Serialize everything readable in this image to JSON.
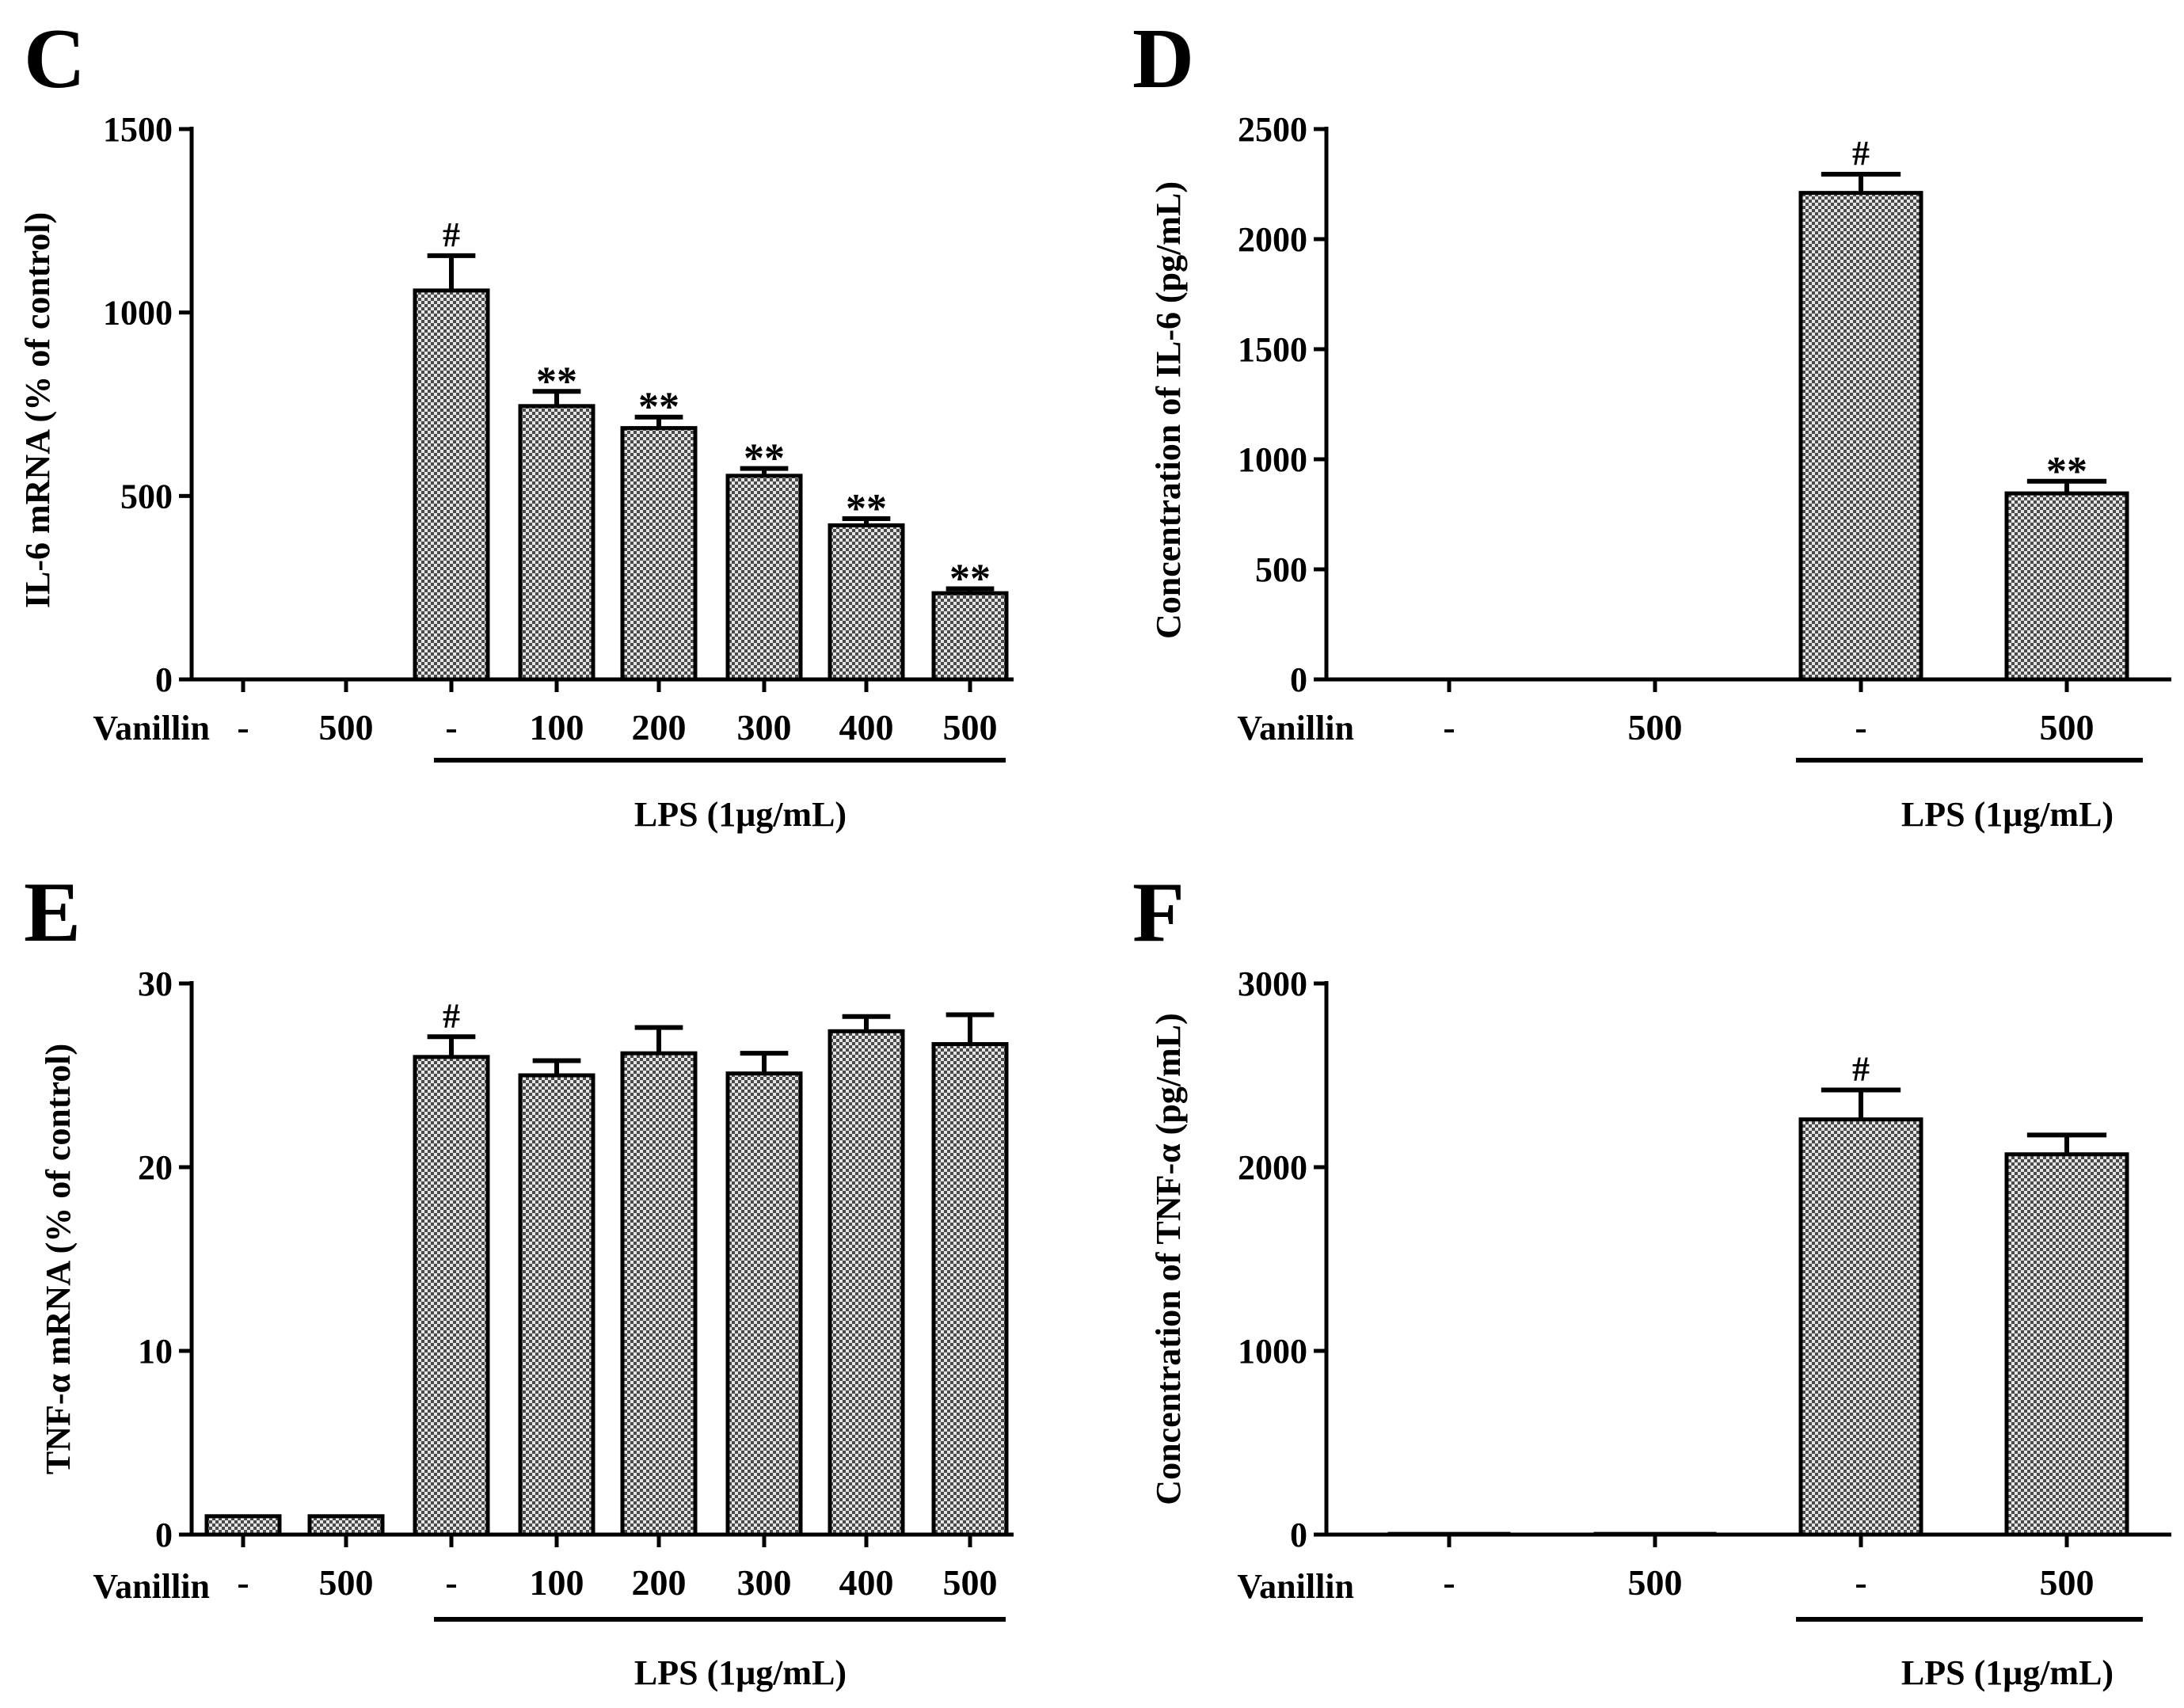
{
  "chart_data": [
    {
      "id": "C",
      "panel_label": "C",
      "type": "bar",
      "ylabel": "IL-6 mRNA (% of control)",
      "ylim": [
        0,
        1500
      ],
      "yticks": [
        0,
        500,
        1000,
        1500
      ],
      "row_label": "Vanillin",
      "categories": [
        "-",
        "500",
        "-",
        "100",
        "200",
        "300",
        "400",
        "500"
      ],
      "values": [
        0,
        0,
        1060,
        745,
        685,
        555,
        420,
        235
      ],
      "errors": [
        0,
        0,
        95,
        40,
        30,
        20,
        18,
        12
      ],
      "annotations": [
        "",
        "",
        "#",
        "**",
        "**",
        "**",
        "**",
        "**"
      ],
      "group_label": "LPS (1μg/mL)",
      "group_range": [
        2,
        7
      ]
    },
    {
      "id": "D",
      "panel_label": "D",
      "type": "bar",
      "ylabel": "Concentration of IL-6 (pg/mL)",
      "ylim": [
        0,
        2500
      ],
      "yticks": [
        0,
        500,
        1000,
        1500,
        2000,
        2500
      ],
      "row_label": "Vanillin",
      "categories": [
        "-",
        "500",
        "-",
        "500"
      ],
      "values": [
        0,
        0,
        2210,
        845
      ],
      "errors": [
        0,
        0,
        85,
        55
      ],
      "annotations": [
        "",
        "",
        "#",
        "**"
      ],
      "group_label": "LPS (1μg/mL)",
      "group_range": [
        2,
        3
      ]
    },
    {
      "id": "E",
      "panel_label": "E",
      "type": "bar",
      "ylabel": "TNF-α mRNA (% of control)",
      "ylim": [
        0,
        30
      ],
      "yticks": [
        0,
        10,
        20,
        30
      ],
      "row_label": "Vanillin",
      "categories": [
        "-",
        "500",
        "-",
        "100",
        "200",
        "300",
        "400",
        "500"
      ],
      "values": [
        1,
        1,
        26,
        25,
        26.2,
        25.1,
        27.4,
        26.7
      ],
      "errors": [
        0,
        0,
        1.1,
        0.8,
        1.4,
        1.1,
        0.8,
        1.6
      ],
      "annotations": [
        "",
        "",
        "#",
        "",
        "",
        "",
        "",
        ""
      ],
      "group_label": "LPS (1μg/mL)",
      "group_range": [
        2,
        7
      ]
    },
    {
      "id": "F",
      "panel_label": "F",
      "type": "bar",
      "ylabel": "Concentration of TNF-α (pg/mL)",
      "ylim": [
        0,
        3000
      ],
      "yticks": [
        0,
        1000,
        2000,
        3000
      ],
      "row_label": "Vanillin",
      "categories": [
        "-",
        "500",
        "-",
        "500"
      ],
      "values": [
        8,
        8,
        2260,
        2070
      ],
      "errors": [
        0,
        0,
        160,
        105
      ],
      "annotations": [
        "",
        "",
        "#",
        ""
      ],
      "group_label": "LPS (1μg/mL)",
      "group_range": [
        2,
        3
      ]
    }
  ],
  "colors": {
    "ink": "#000000",
    "bar_fill_dark": "#4a4a4a",
    "bar_fill_light": "#e6e6e6",
    "background": "#ffffff"
  }
}
